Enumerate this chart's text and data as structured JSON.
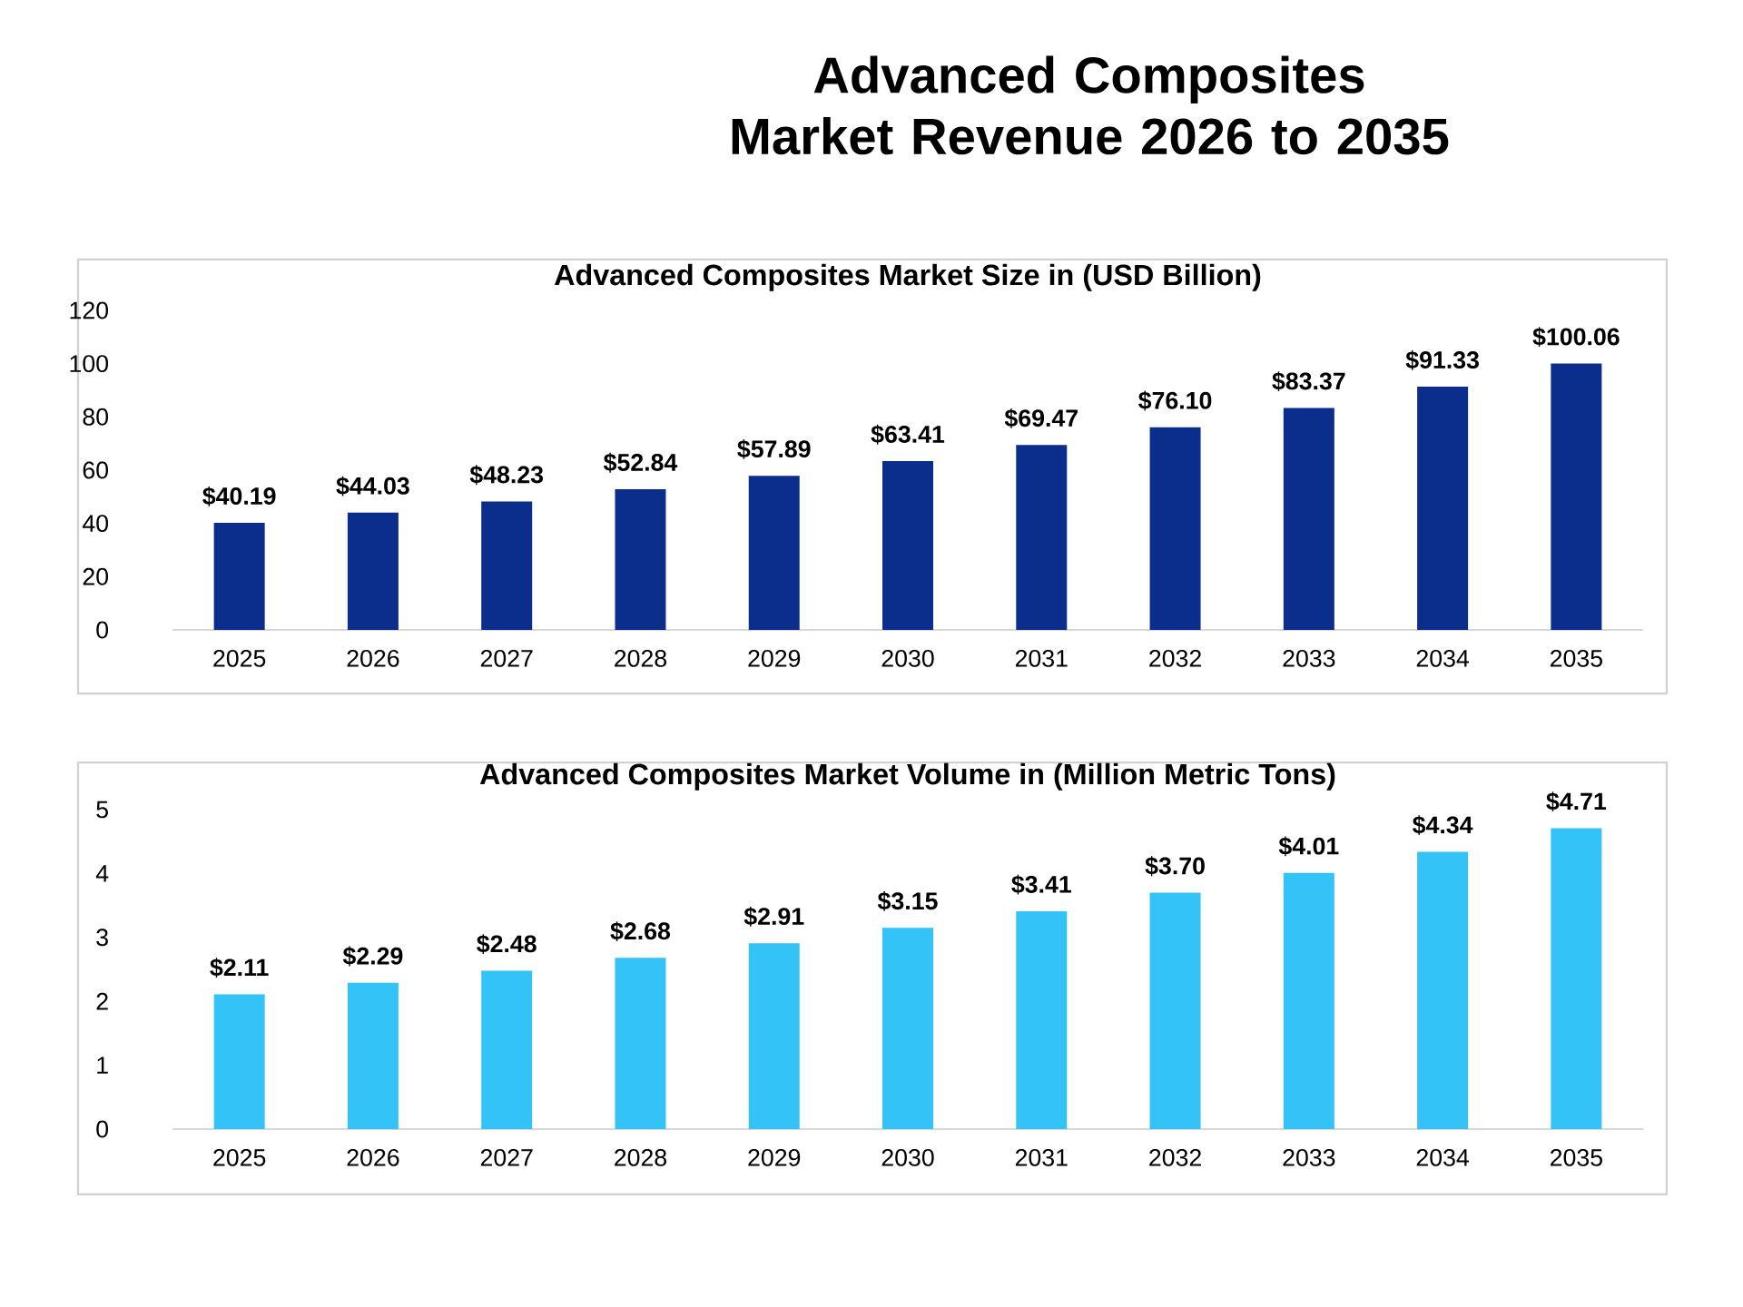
{
  "chart_data": [
    {
      "type": "bar",
      "title": "Advanced Composites Market Revenue 2026 to 2035",
      "subtitle": "Advanced Composites Market Size in (USD Billion)",
      "categories": [
        "2025",
        "2026",
        "2027",
        "2028",
        "2029",
        "2030",
        "2031",
        "2032",
        "2033",
        "2034",
        "2035"
      ],
      "values": [
        40.19,
        44.03,
        48.23,
        52.84,
        57.89,
        63.41,
        69.47,
        76.1,
        83.37,
        91.33,
        100.06
      ],
      "value_labels": [
        "$40.19",
        "$44.03",
        "$48.23",
        "$52.84",
        "$57.89",
        "$63.41",
        "$69.47",
        "$76.10",
        "$83.37",
        "$91.33",
        "$100.06"
      ],
      "color": "#0b2e8c",
      "ylim": [
        0,
        120
      ],
      "yticks": [
        0,
        20,
        40,
        60,
        80,
        100,
        120
      ]
    },
    {
      "type": "bar",
      "title": "Advanced Composites Market Volume in (Million Metric Tons)",
      "categories": [
        "2025",
        "2026",
        "2027",
        "2028",
        "2029",
        "2030",
        "2031",
        "2032",
        "2033",
        "2034",
        "2035"
      ],
      "values": [
        2.11,
        2.29,
        2.48,
        2.68,
        2.91,
        3.15,
        3.41,
        3.7,
        4.01,
        4.34,
        4.71
      ],
      "value_labels": [
        "$2.11",
        "$2.29",
        "$2.48",
        "$2.68",
        "$2.91",
        "$3.15",
        "$3.41",
        "$3.70",
        "$4.01",
        "$4.34",
        "$4.71"
      ],
      "color": "#33c3f7",
      "ylim": [
        0,
        5
      ],
      "yticks": [
        0,
        1,
        2,
        3,
        4,
        5
      ]
    }
  ]
}
